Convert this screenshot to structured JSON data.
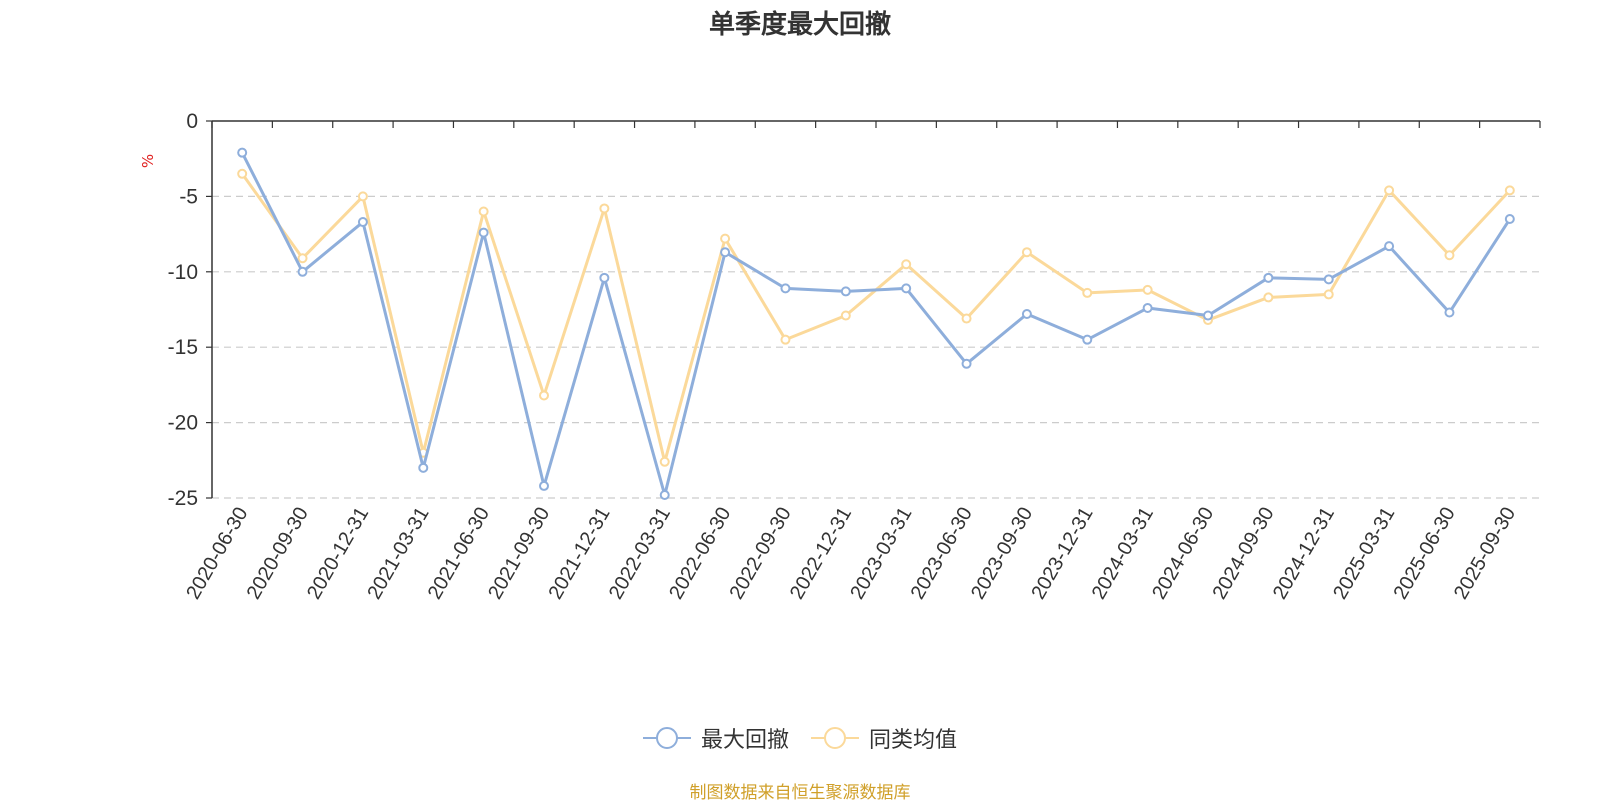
{
  "chart_data": {
    "type": "line",
    "title": "单季度最大回撤",
    "ylabel": "%",
    "ylim": [
      -25,
      0
    ],
    "yticks": [
      0,
      -5,
      -10,
      -15,
      -20,
      -25
    ],
    "grid": true,
    "legend_position": "bottom",
    "categories": [
      "2020-06-30",
      "2020-09-30",
      "2020-12-31",
      "2021-03-31",
      "2021-06-30",
      "2021-09-30",
      "2021-12-31",
      "2022-03-31",
      "2022-06-30",
      "2022-09-30",
      "2022-12-31",
      "2023-03-31",
      "2023-06-30",
      "2023-09-30",
      "2023-12-31",
      "2024-03-31",
      "2024-06-30",
      "2024-09-30",
      "2024-12-31",
      "2025-03-31",
      "2025-06-30",
      "2025-09-30"
    ],
    "series": [
      {
        "name": "最大回撤",
        "color": "#8eaedb",
        "values": [
          -2.1,
          -10.0,
          -6.7,
          -23.0,
          -7.4,
          -24.2,
          -10.4,
          -24.8,
          -8.7,
          -11.1,
          -11.3,
          -11.1,
          -16.1,
          -12.8,
          -14.5,
          -12.4,
          -12.9,
          -10.4,
          -10.5,
          -8.3,
          -12.7,
          -6.5
        ]
      },
      {
        "name": "同类均值",
        "color": "#fbd99a",
        "values": [
          -3.5,
          -9.1,
          -5.0,
          -22.0,
          -6.0,
          -18.2,
          -5.8,
          -22.6,
          -7.8,
          -14.5,
          -12.9,
          -9.5,
          -13.1,
          -8.7,
          -11.4,
          -11.2,
          -13.2,
          -11.7,
          -11.5,
          -4.6,
          -8.9,
          -4.6
        ]
      }
    ]
  },
  "footer": "制图数据来自恒生聚源数据库"
}
